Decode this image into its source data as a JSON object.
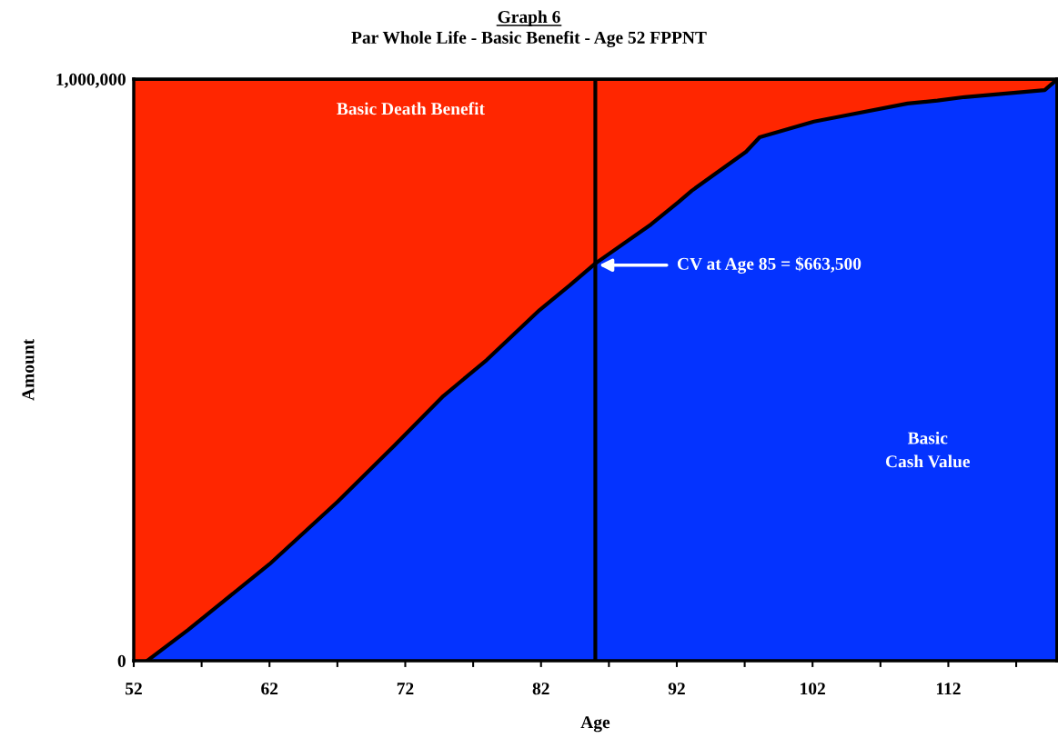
{
  "chart_data": {
    "type": "area",
    "title": "Graph 6",
    "subtitle": "Par Whole Life - Basic Benefit - Age 52 FPPNT",
    "xlabel": "Age",
    "ylabel": "Amount",
    "xlim": [
      52,
      120
    ],
    "xticks": [
      52,
      {
        "value": 57,
        "label": null
      },
      62,
      {
        "value": 67,
        "label": null
      },
      72,
      {
        "value": 77,
        "label": null
      },
      82,
      {
        "value": 87,
        "label": null
      },
      92,
      {
        "value": 97,
        "label": null
      },
      102,
      {
        "value": 107,
        "label": null
      },
      112,
      {
        "value": 117,
        "label": null
      }
    ],
    "ylim": [
      0,
      1000000
    ],
    "yticks": [
      0,
      {
        "value": 1000000,
        "label": "1,000,000"
      }
    ],
    "series": [
      {
        "name": "Basic Death Benefit",
        "color": "#ff2600",
        "x": [
          52,
          120
        ],
        "values": [
          1000000,
          1000000
        ]
      },
      {
        "name": "Basic\nCash Value",
        "color": "#0433ff",
        "x": [
          53,
          56,
          62,
          67,
          71.2,
          74.8,
          78,
          81.9,
          84.1,
          86,
          90.1,
          92.1,
          93.1,
          97.1,
          98.1,
          102.1,
          104.1,
          109,
          111.2,
          113.2,
          119.1,
          119.8,
          120
        ],
        "values": [
          0,
          53000,
          166000,
          273000,
          370000,
          455000,
          517000,
          603000,
          645000,
          683000,
          750000,
          788000,
          808000,
          875000,
          900000,
          927000,
          936000,
          958000,
          963000,
          969000,
          981000,
          995000,
          1000000
        ]
      }
    ],
    "ref_lines": [
      {
        "axis": "x",
        "value": 86,
        "label": null,
        "color": "#000000"
      }
    ],
    "annotations": [
      {
        "text": "CV at Age 85 = $663,500",
        "x": 86,
        "y": 680000
      }
    ],
    "grid": false,
    "legend": false
  }
}
